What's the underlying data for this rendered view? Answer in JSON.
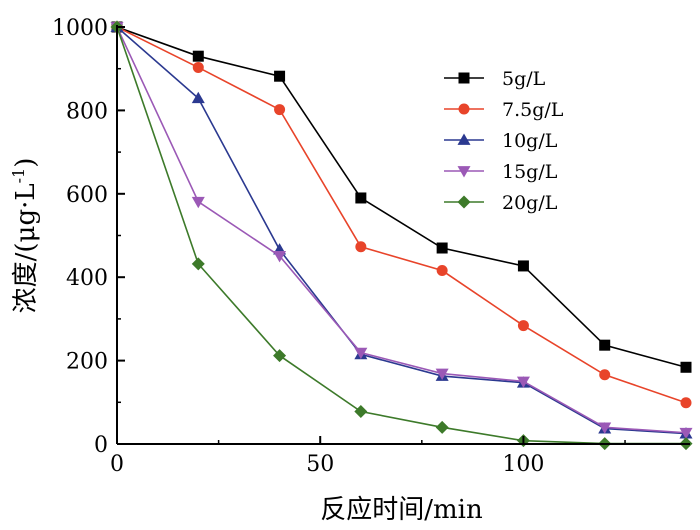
{
  "chart_data": {
    "type": "line",
    "title": "",
    "xlabel": "反应时间/min",
    "ylabel_main": "浓度/(μg·L",
    "ylabel_sup": "-1",
    "ylabel_tail": ")",
    "xlim": [
      0,
      140
    ],
    "ylim": [
      0,
      1000
    ],
    "x_ticks": [
      0,
      50,
      100
    ],
    "y_ticks": [
      0,
      200,
      400,
      600,
      800,
      1000
    ],
    "x_tick_labels": [
      "0",
      "50",
      "100"
    ],
    "y_tick_labels": [
      "0",
      "200",
      "400",
      "600",
      "800",
      "1000"
    ],
    "grid": false,
    "legend_position": "top-right",
    "x": [
      0,
      20,
      40,
      60,
      80,
      100,
      120,
      140
    ],
    "series": [
      {
        "name": "5g/L",
        "color": "#000000",
        "marker": "square",
        "values": [
          1000,
          930,
          882,
          590,
          470,
          427,
          237,
          184
        ]
      },
      {
        "name": "7.5g/L",
        "color": "#e8442a",
        "marker": "circle",
        "values": [
          1000,
          903,
          802,
          473,
          416,
          284,
          166,
          99
        ]
      },
      {
        "name": "10g/L",
        "color": "#2b3990",
        "marker": "triangle-up",
        "values": [
          1000,
          829,
          466,
          215,
          163,
          147,
          37,
          25
        ]
      },
      {
        "name": "15g/L",
        "color": "#9b59b6",
        "marker": "triangle-down",
        "values": [
          1000,
          581,
          451,
          219,
          169,
          150,
          40,
          27
        ]
      },
      {
        "name": "20g/L",
        "color": "#3d7a2a",
        "marker": "diamond",
        "values": [
          1000,
          432,
          212,
          78,
          40,
          8,
          1,
          1
        ]
      }
    ]
  }
}
